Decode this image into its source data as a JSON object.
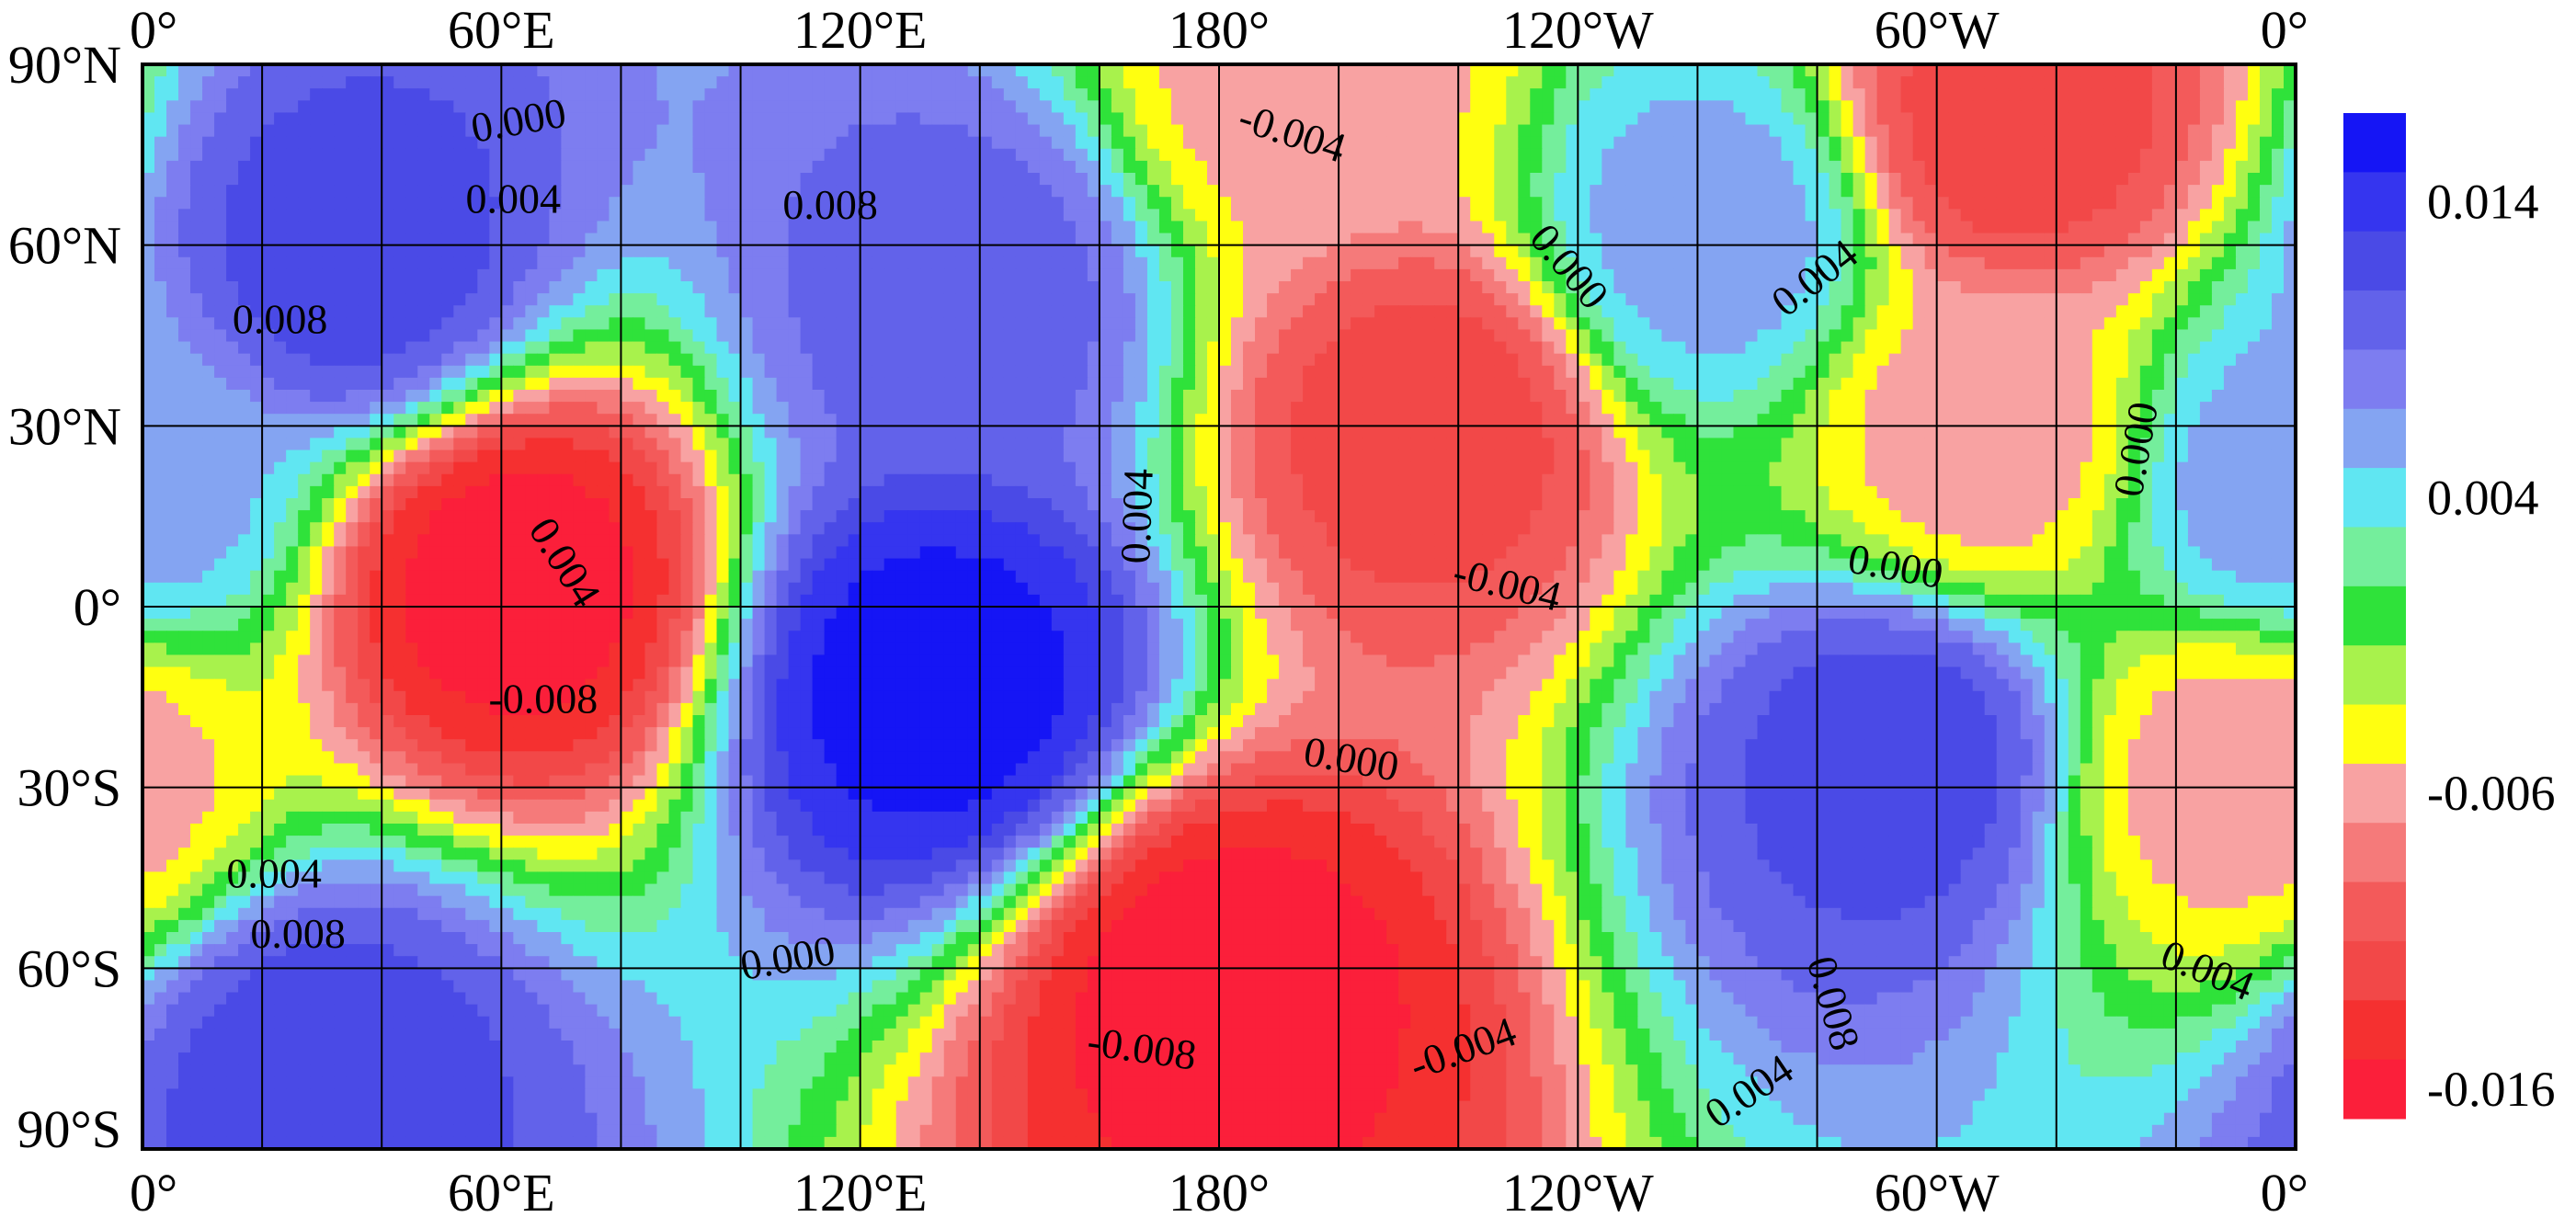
{
  "chart_data": {
    "type": "heatmap",
    "title": "",
    "xlabel": "",
    "ylabel": "",
    "projection": "global longitude-latitude contour map, filled contours",
    "x_ticks": [
      "0°",
      "60°E",
      "120°E",
      "180°",
      "120°W",
      "60°W",
      "0°"
    ],
    "x_tick_values": [
      0,
      60,
      120,
      180,
      240,
      300,
      360
    ],
    "y_ticks": [
      "90°N",
      "60°N",
      "30°N",
      "0°",
      "30°S",
      "60°S",
      "90°S"
    ],
    "y_tick_values": [
      90,
      60,
      30,
      0,
      -30,
      -60,
      -90
    ],
    "xlim": [
      0,
      360
    ],
    "ylim": [
      -90,
      90
    ],
    "grid": true,
    "grid_step_lon": 20,
    "grid_step_lat": 30,
    "colorbar": {
      "placement": "right",
      "labels": [
        "0.014",
        "0.004",
        "-0.006",
        "-0.016"
      ],
      "label_values": [
        0.014,
        0.004,
        -0.006,
        -0.016
      ],
      "levels_top_to_bottom": [
        {
          "value": 0.016,
          "color": "#1515f5"
        },
        {
          "value": 0.014,
          "color": "#3535ef"
        },
        {
          "value": 0.012,
          "color": "#4a4ae6"
        },
        {
          "value": 0.01,
          "color": "#6262ea"
        },
        {
          "value": 0.008,
          "color": "#7d7df0"
        },
        {
          "value": 0.006,
          "color": "#84a4f2"
        },
        {
          "value": 0.004,
          "color": "#60e6f2"
        },
        {
          "value": 0.002,
          "color": "#74ee9c"
        },
        {
          "value": 0.0,
          "color": "#2fe23a"
        },
        {
          "value": -0.002,
          "color": "#a8f24c"
        },
        {
          "value": -0.004,
          "color": "#ffff10"
        },
        {
          "value": -0.006,
          "color": "#f8a2a2"
        },
        {
          "value": -0.008,
          "color": "#f57a7a"
        },
        {
          "value": -0.01,
          "color": "#f35a5a"
        },
        {
          "value": -0.012,
          "color": "#f24848"
        },
        {
          "value": -0.014,
          "color": "#f53030"
        },
        {
          "value": -0.016,
          "color": "#fb1f3a"
        }
      ]
    },
    "field_centers": [
      {
        "lon": 35,
        "lat": 58,
        "value": 0.012
      },
      {
        "lon": 30,
        "lat": -77,
        "value": 0.012
      },
      {
        "lon": 133,
        "lat": -13,
        "value": 0.016
      },
      {
        "lon": 137,
        "lat": 52,
        "value": 0.01
      },
      {
        "lon": 293,
        "lat": -25,
        "value": 0.012
      },
      {
        "lon": 262,
        "lat": 62,
        "value": 0.006
      },
      {
        "lon": 358,
        "lat": 20,
        "value": 0.006
      },
      {
        "lon": 62,
        "lat": 4,
        "value": -0.016
      },
      {
        "lon": 180,
        "lat": -63,
        "value": -0.016
      },
      {
        "lon": 215,
        "lat": 30,
        "value": -0.012
      },
      {
        "lon": 313,
        "lat": 80,
        "value": -0.012
      },
      {
        "lon": 308,
        "lat": 28,
        "value": -0.006
      },
      {
        "lon": 195,
        "lat": 88,
        "value": -0.006
      },
      {
        "lon": 350,
        "lat": -28,
        "value": -0.006
      }
    ],
    "contour_labels": [
      {
        "text": "0.000",
        "lon": 63,
        "lat": 80,
        "angle": -10
      },
      {
        "text": "0.004",
        "lon": 62,
        "lat": 67,
        "angle": 0
      },
      {
        "text": "0.008",
        "lon": 115,
        "lat": 66,
        "angle": 0
      },
      {
        "text": "-0.004",
        "lon": 192,
        "lat": 78,
        "angle": 18
      },
      {
        "text": "0.000",
        "lon": 238,
        "lat": 56,
        "angle": 50
      },
      {
        "text": "0.004",
        "lon": 280,
        "lat": 54,
        "angle": -38
      },
      {
        "text": "0.008",
        "lon": 23,
        "lat": 47,
        "angle": 0
      },
      {
        "text": "0.004",
        "lon": 167,
        "lat": 15,
        "angle": -88
      },
      {
        "text": "0.000",
        "lon": 334,
        "lat": 26,
        "angle": -80
      },
      {
        "text": "0.004",
        "lon": 70,
        "lat": 7,
        "angle": 58
      },
      {
        "text": "-0.004",
        "lon": 228,
        "lat": 3,
        "angle": 14
      },
      {
        "text": "0.000",
        "lon": 293,
        "lat": 6,
        "angle": 10
      },
      {
        "text": "-0.008",
        "lon": 67,
        "lat": -16,
        "angle": 0
      },
      {
        "text": "0.000",
        "lon": 202,
        "lat": -26,
        "angle": 10
      },
      {
        "text": "0.004",
        "lon": 22,
        "lat": -45,
        "angle": 0
      },
      {
        "text": "0.008",
        "lon": 26,
        "lat": -55,
        "angle": 0
      },
      {
        "text": "0.000",
        "lon": 108,
        "lat": -59,
        "angle": -10
      },
      {
        "text": "0.008",
        "lon": 282,
        "lat": -66,
        "angle": 74
      },
      {
        "text": "0.004",
        "lon": 345,
        "lat": -61,
        "angle": 22
      },
      {
        "text": "-0.008",
        "lon": 167,
        "lat": -74,
        "angle": 8
      },
      {
        "text": "-0.004",
        "lon": 221,
        "lat": -74,
        "angle": -20
      },
      {
        "text": "0.004",
        "lon": 269,
        "lat": -81,
        "angle": -34
      }
    ]
  }
}
